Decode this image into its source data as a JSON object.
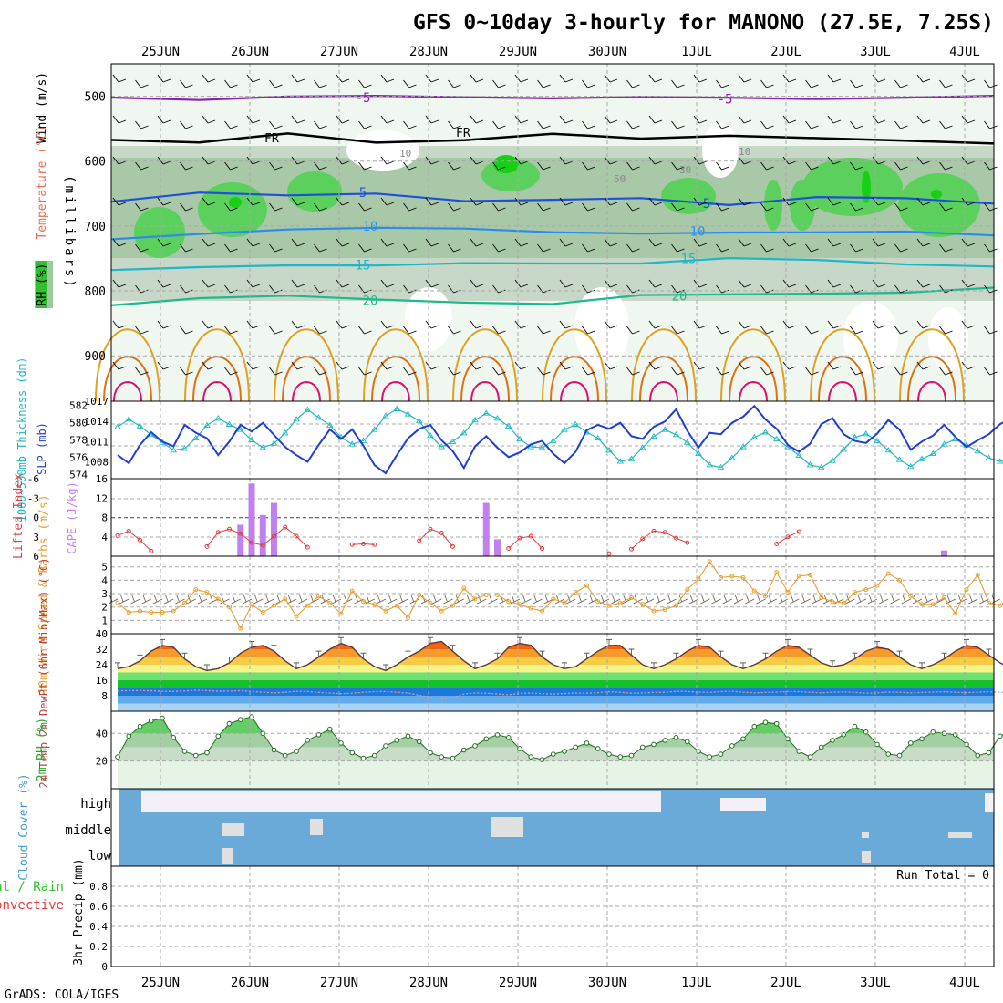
{
  "title": "GFS 0~10day 3-hourly for MANONO (27.5E, 7.25S)",
  "credit": "GrADS: COLA/IGES",
  "dates": [
    "25JUN",
    "26JUN",
    "27JUN",
    "28JUN",
    "29JUN",
    "30JUN",
    "1JUL",
    "2JUL",
    "3JUL",
    "4JUL"
  ],
  "colors": {
    "temp_minus5": "#8b1fb4",
    "freezing": "#000000",
    "temp_5": "#1f4fd8",
    "temp_10": "#2a8ee8",
    "temp_15": "#1fb6c8",
    "temp_20": "#1fb88c",
    "temp_25": "#e0a020",
    "temp_30": "#e07010",
    "temp_35": "#e0106a",
    "rh_light": "#e4f2e4",
    "rh_mid": "#c8d8c8",
    "rh_high": "#a8c8a8",
    "rh_green": "#5cd05c",
    "rh_bright": "#16d016",
    "slp": "#1f3fd0",
    "thickness": "#20b8c0",
    "lifted_index": "#e03c3c",
    "cape": "#c080f0",
    "wind10m": "#e8a030",
    "cloud": "#6aaad8",
    "grid": "#a8a8a8"
  },
  "chart_data": [
    {
      "panel": "upper-air",
      "type": "contour",
      "y_axis_title": "(millibars)",
      "side_labels": {
        "wind": "Wind (m/s)",
        "temperature": "Temperature (°C)",
        "rh": "RH (%)"
      },
      "ylim": [
        450,
        970
      ],
      "yticks": [
        500,
        600,
        700,
        800,
        900
      ],
      "grid": true,
      "freezing_label": "FR",
      "rh_labels": [
        "10",
        "30",
        "50"
      ],
      "temperature_contours": [
        {
          "label": "-5",
          "level": -5,
          "values": [
            502,
            503,
            501,
            502,
            500,
            501,
            503,
            504,
            502,
            501,
            502
          ]
        },
        {
          "label": "FR",
          "level": 0,
          "values": [
            565,
            570,
            560,
            572,
            565,
            558,
            568,
            560,
            562,
            570,
            575
          ]
        },
        {
          "label": "5",
          "level": 5,
          "values": [
            660,
            650,
            655,
            648,
            660,
            662,
            658,
            665,
            655,
            660,
            665
          ]
        },
        {
          "label": "10",
          "level": 10,
          "values": [
            720,
            715,
            705,
            700,
            705,
            712,
            710,
            708,
            712,
            710,
            712
          ]
        },
        {
          "label": "15",
          "level": 15,
          "values": [
            770,
            765,
            758,
            760,
            760,
            758,
            755,
            750,
            755,
            758,
            760
          ]
        },
        {
          "label": "20",
          "level": 20,
          "values": [
            825,
            810,
            805,
            815,
            820,
            818,
            805,
            808,
            805,
            800,
            795
          ]
        }
      ]
    },
    {
      "panel": "pressure-thickness",
      "type": "line",
      "ylabel_left": "1000~500mb Thickness (dm)",
      "ylabel_right": "SLP (mb)",
      "left_ticks": [
        "582",
        "580",
        "578",
        "576",
        "574"
      ],
      "right_ticks": [
        "1017",
        "1014",
        "1011",
        "1008"
      ],
      "left_ylim": [
        573.5,
        582.5
      ],
      "right_ylim": [
        1005.5,
        1017
      ],
      "series": [
        {
          "name": "SLP (mb)",
          "axis": "right",
          "values": [
            1009,
            1007.8,
            1010.5,
            1012.4,
            1011,
            1010.3,
            1013.5,
            1012.3,
            1011.5,
            1009,
            1011,
            1013.5,
            1012.5,
            1013.8,
            1012,
            1010.2,
            1009,
            1008,
            1010.5,
            1012.8,
            1011.4,
            1012.8,
            1010.4,
            1007.5,
            1006.3,
            1009,
            1011.5,
            1012.9,
            1013.5,
            1011.2,
            1009.6,
            1007.1,
            1010.3,
            1011.8,
            1010.1,
            1008.7,
            1009.4,
            1010.6,
            1011.1,
            1009.2,
            1007.8,
            1009.5,
            1012.7,
            1013.5,
            1012.9,
            1013.8,
            1011.8,
            1011.4,
            1013.2,
            1014,
            1015.8,
            1012.6,
            1010.1,
            1012.3,
            1012.1,
            1013.8,
            1014.7,
            1016.3,
            1014.3,
            1012.9,
            1010.5,
            1009.5,
            1010.7,
            1013.6,
            1014.5,
            1012.1,
            1011.1,
            1010.8,
            1012.2,
            1014.2,
            1012.8,
            1009.8,
            1011,
            1011.9,
            1013.5,
            1011.7,
            1010.2,
            1011.2,
            1012.1,
            1013.6,
            1014.5
          ]
        },
        {
          "name": "1000~500mb Thickness (dm)",
          "axis": "left",
          "values": [
            579.5,
            580.4,
            579.6,
            578.6,
            577.7,
            576.8,
            577,
            578.2,
            579.7,
            580.5,
            579.8,
            579.2,
            578,
            577.1,
            577.6,
            578.8,
            580.4,
            581.5,
            580.6,
            579.7,
            578.3,
            577.5,
            577.9,
            579.2,
            580.8,
            581.6,
            581,
            580.2,
            578.5,
            577.2,
            577.8,
            578.8,
            580.3,
            581.1,
            580.5,
            579.6,
            578.1,
            577.2,
            577.1,
            577.9,
            579.2,
            579.8,
            578.9,
            578.2,
            576.8,
            575.5,
            575.8,
            577.1,
            578.4,
            579.2,
            578.6,
            577.7,
            576.4,
            575.1,
            574.8,
            575.9,
            577.2,
            578.3,
            578.9,
            578.1,
            577.2,
            576.2,
            575.1,
            574.8,
            575.6,
            576.9,
            578.3,
            578.7,
            577.9,
            576.8,
            575.7,
            574.9,
            575.8,
            576.4,
            577.5,
            578.1,
            577.4,
            576.7,
            575.9,
            575.5,
            576.1
          ]
        }
      ]
    },
    {
      "panel": "instability",
      "type": "bar",
      "ylabel_left": "Lifted Index",
      "ylabel_right": "CAPE (J/kg)",
      "left_ticks": [
        "-6",
        "-3",
        "0",
        "3",
        "6"
      ],
      "right_ticks": [
        "16",
        "12",
        "8",
        "4"
      ],
      "li_ylim": [
        6,
        -6
      ],
      "cape_ylim": [
        0,
        16
      ],
      "series": [
        {
          "name": "Lifted Index",
          "axis": "left",
          "type": "line",
          "values": [
            2.8,
            2.1,
            3.5,
            5.2,
            null,
            null,
            null,
            null,
            4.5,
            2.3,
            1.8,
            2.5,
            3.9,
            4.3,
            2.9,
            1.5,
            2.9,
            4.6,
            null,
            null,
            null,
            4.2,
            4.1,
            4.2,
            null,
            null,
            null,
            3.6,
            1.8,
            2.4,
            4.5,
            null,
            null,
            null,
            null,
            4.8,
            3.2,
            2.9,
            4.8,
            null,
            null,
            null,
            null,
            null,
            5.6,
            null,
            4.9,
            3.3,
            2.1,
            2.3,
            3.2,
            3.9,
            null,
            null,
            null,
            null,
            null,
            null,
            null,
            4.1,
            3.0,
            2.2,
            null,
            null,
            null,
            null,
            null,
            null,
            null,
            null,
            null,
            null,
            null,
            null,
            null,
            null,
            null,
            null,
            null,
            null,
            null
          ]
        },
        {
          "name": "CAPE (J/kg)",
          "axis": "right",
          "type": "bar",
          "values": [
            0,
            0,
            0,
            0,
            0,
            0,
            0,
            0,
            0,
            0,
            0,
            6.5,
            15,
            8.5,
            11,
            0,
            0,
            0,
            0,
            0,
            0,
            0,
            0,
            0,
            0,
            0,
            0,
            0,
            0,
            0,
            0,
            0,
            0,
            11,
            3.5,
            0,
            0,
            0,
            0,
            0,
            0,
            0,
            0,
            0,
            0,
            0,
            0,
            0,
            0,
            0,
            0,
            0,
            0,
            0,
            0,
            0,
            0,
            0,
            0,
            0,
            0,
            0,
            0,
            0,
            0,
            0,
            0,
            0,
            0,
            0,
            0,
            0,
            0,
            0,
            1.2,
            0,
            0,
            0,
            0,
            0,
            0
          ]
        }
      ]
    },
    {
      "panel": "wind-10m",
      "type": "line",
      "ylabel": "10m Wind Speed & Barbs (m/s)",
      "ticks": [
        "5",
        "4",
        "3",
        "2",
        "1"
      ],
      "ylim": [
        0,
        5.8
      ],
      "series": [
        {
          "name": "10m Wind Speed",
          "values": [
            2.3,
            1.6,
            1.7,
            1.6,
            1.6,
            1.7,
            2.3,
            3.3,
            3.1,
            2.6,
            2,
            0.4,
            2.2,
            1.6,
            2.1,
            2.6,
            1.3,
            2.1,
            2.8,
            2.3,
            1.5,
            3.2,
            2.4,
            2.2,
            1.7,
            2.1,
            1.2,
            2.9,
            2.3,
            1.7,
            2.1,
            3.4,
            2.6,
            2.9,
            2.9,
            2.4,
            2.2,
            1.9,
            1.7,
            2.6,
            2.3,
            3.1,
            3.6,
            2.4,
            2.1,
            2.3,
            2.7,
            2.2,
            1.7,
            1.8,
            2.1,
            3.3,
            4.1,
            5.4,
            4.2,
            4.3,
            4.2,
            3.2,
            2.8,
            4.6,
            3.1,
            4.3,
            4.4,
            2.7,
            2.4,
            2.3,
            3.1,
            3.3,
            3.6,
            4.5,
            4,
            2.8,
            2.2,
            2.2,
            2.7,
            1.5,
            3.3,
            4.4,
            2.3,
            2.1,
            2.5
          ]
        }
      ]
    },
    {
      "panel": "temperature-2m",
      "type": "area",
      "ylabel": "2m Temp 2m DewPt (6hr Min/Max) (°C)",
      "ticks": [
        "40",
        "32",
        "24",
        "16",
        "8"
      ],
      "ylim": [
        0,
        40
      ],
      "series": [
        {
          "name": "2m Temp",
          "values": [
            22,
            23,
            26,
            31,
            34,
            33,
            27,
            23,
            21,
            22,
            25,
            30,
            33,
            34,
            31,
            26,
            22,
            24,
            28,
            32,
            35,
            33,
            27,
            23,
            21,
            24,
            28,
            31,
            35,
            36,
            31,
            26,
            22,
            24,
            27,
            33,
            35,
            34,
            28,
            24,
            22,
            23,
            27,
            31,
            34,
            34,
            29,
            24,
            22,
            24,
            27,
            31,
            34,
            33,
            28,
            24,
            22,
            24,
            27,
            31,
            34,
            33,
            29,
            25,
            23,
            24,
            27,
            31,
            33,
            32,
            28,
            24,
            22,
            24,
            27,
            31,
            34,
            33,
            29,
            25,
            22
          ]
        },
        {
          "name": "2m DewPt",
          "values": [
            10.5,
            10.6,
            10.7,
            10.6,
            10.3,
            10.2,
            10.5,
            10.8,
            10.7,
            10.3,
            10.4,
            10.6,
            10.2,
            9.8,
            9.5,
            9.8,
            10.3,
            10.2,
            9.7,
            9.4,
            9.1,
            9.3,
            9.8,
            10.1,
            10.2,
            9.8,
            9.4,
            8.2,
            7.3,
            6.2,
            7.1,
            8.9,
            9.4,
            9.3,
            8.9,
            8.5,
            9.2,
            9.4,
            9.1,
            8.9,
            9.2,
            9.4,
            9.3,
            9.6,
            10.1,
            9.8,
            9.3,
            9.4,
            9.7,
            9.8,
            10.3,
            10.2,
            9.9,
            9.7,
            10.1,
            10.3,
            9.8,
            9.5,
            9.7,
            9.9,
            10.2,
            10.1,
            9.8,
            9.5,
            9.8,
            10,
            9.8,
            9.3,
            9.5,
            9.9,
            9.8,
            9.5,
            9.7,
            9.9,
            10.1,
            9.8,
            9.6,
            9.8,
            10.1,
            9.8,
            9.5
          ]
        }
      ]
    },
    {
      "panel": "rh-2m",
      "type": "area",
      "ylabel": "2m RH (%)",
      "ticks": [
        "40",
        "20"
      ],
      "ylim": [
        0,
        56
      ],
      "series": [
        {
          "name": "2m RH",
          "values": [
            23,
            38,
            45,
            49,
            51,
            37,
            27,
            24,
            26,
            38,
            47,
            50,
            52,
            40,
            28,
            24,
            27,
            35,
            39,
            43,
            33,
            26,
            22,
            24,
            31,
            35,
            38,
            34,
            26,
            23,
            22,
            28,
            31,
            36,
            39,
            37,
            29,
            23,
            21,
            25,
            27,
            30,
            33,
            29,
            25,
            23,
            24,
            30,
            32,
            35,
            37,
            34,
            27,
            23,
            25,
            31,
            36,
            45,
            48,
            47,
            36,
            27,
            23,
            30,
            35,
            39,
            45,
            41,
            32,
            25,
            24,
            33,
            36,
            41,
            40,
            39,
            32,
            24,
            26,
            38,
            42
          ]
        }
      ]
    },
    {
      "panel": "cloud-cover",
      "type": "heatmap",
      "ylabel": "Cloud Cover (%)",
      "rows": [
        "high",
        "middle",
        "low"
      ]
    },
    {
      "panel": "precipitation",
      "type": "bar",
      "ylabel_left": "Total / Rain",
      "ylabel_left2": "Convective",
      "ylabel": "3hr Precip (mm)",
      "ticks": [
        "0.8",
        "0.6",
        "0.4",
        "0.2",
        "0"
      ],
      "ylim": [
        0,
        1
      ],
      "run_total_label": "Run Total = 0",
      "series": []
    }
  ]
}
